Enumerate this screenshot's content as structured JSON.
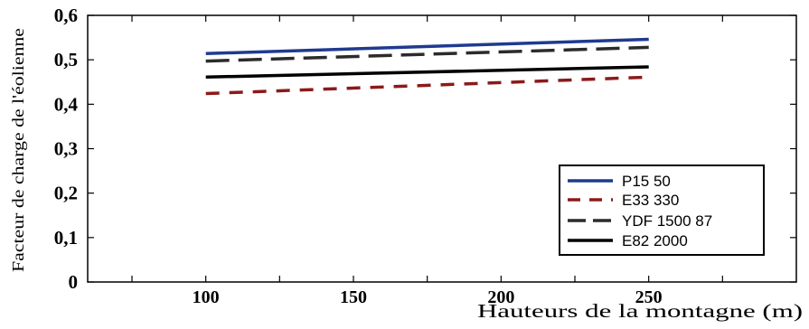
{
  "chart_data": {
    "type": "line",
    "xlabel": "Hauteurs de la montagne (m)",
    "ylabel": "Facteur de charge de l'éolienne",
    "xlim": [
      60,
      300
    ],
    "ylim": [
      0,
      0.6
    ],
    "x_ticks": [
      100,
      150,
      200,
      250
    ],
    "x_tick_labels": [
      "100",
      "150",
      "200",
      "250"
    ],
    "y_ticks": [
      0,
      0.1,
      0.2,
      0.3,
      0.4,
      0.5,
      0.6
    ],
    "y_tick_labels": [
      "0",
      "0,1",
      "0,2",
      "0,3",
      "0,4",
      "0,5",
      "0,6"
    ],
    "grid": false,
    "legend_position": "bottom-right",
    "series": [
      {
        "name": "P15 50",
        "x": [
          100,
          250
        ],
        "values": [
          0.514,
          0.546
        ],
        "color": "#1f3a8f",
        "style": "solid"
      },
      {
        "name": "E33 330",
        "x": [
          100,
          250
        ],
        "values": [
          0.424,
          0.461
        ],
        "color": "#8b1a1a",
        "style": "dashed"
      },
      {
        "name": "YDF 1500 87",
        "x": [
          100,
          250
        ],
        "values": [
          0.497,
          0.528
        ],
        "color": "#2b2b2b",
        "style": "longdash"
      },
      {
        "name": "E82 2000",
        "x": [
          100,
          250
        ],
        "values": [
          0.461,
          0.484
        ],
        "color": "#000000",
        "style": "solid"
      }
    ]
  }
}
